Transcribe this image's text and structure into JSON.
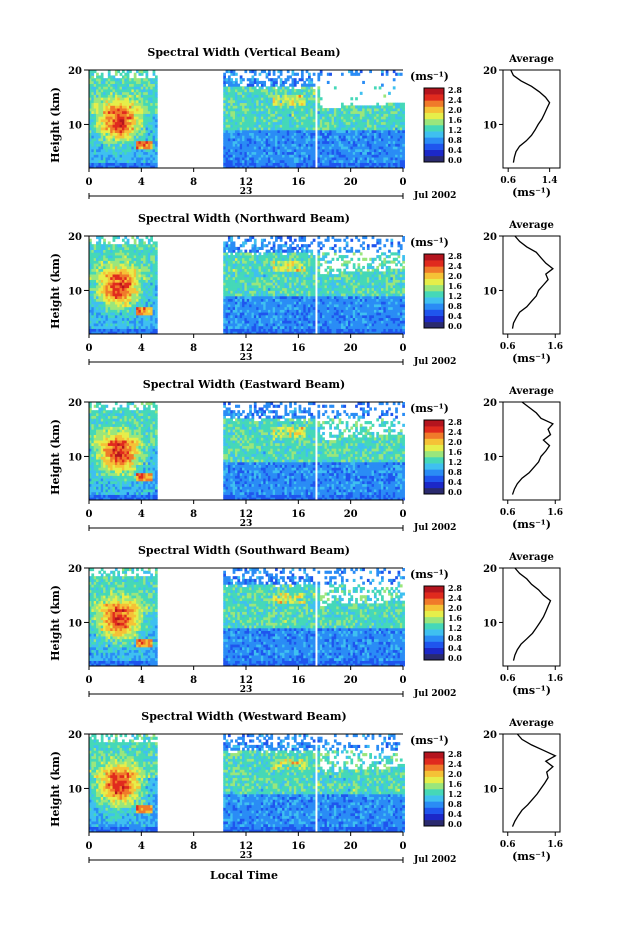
{
  "colorbar": {
    "unit_label": "(ms⁻¹)",
    "ticks": [
      "0.0",
      "0.4",
      "0.8",
      "1.2",
      "1.6",
      "2.0",
      "2.4",
      "2.8"
    ],
    "colors": [
      "#2a2a6e",
      "#1c28c8",
      "#1f55ee",
      "#2a8cf5",
      "#3fc0f0",
      "#45d8b8",
      "#9ae67c",
      "#e6ee4a",
      "#f5c236",
      "#f07a2a",
      "#e02a1e",
      "#b4141e"
    ]
  },
  "xaxis": {
    "ticks": [
      "0",
      "4",
      "8",
      "12",
      "16",
      "20",
      "0"
    ],
    "day_label": "23",
    "month_label": "Jul 2002",
    "label": "Local Time"
  },
  "yaxis": {
    "label": "Height (km)",
    "ticks": [
      "20",
      "10"
    ]
  },
  "chart_data": [
    {
      "type": "heatmap",
      "title": "Spectral Width (Vertical Beam)",
      "xlabel": "Local Time",
      "ylabel": "Height (km)",
      "xlim": [
        0,
        24
      ],
      "ylim": [
        2,
        20
      ],
      "data_gaps_hours": [
        [
          5.2,
          10.3
        ],
        [
          17.2,
          17.5
        ]
      ],
      "profile": {
        "title": "Average",
        "xlabel": "(ms⁻¹)",
        "xticks": [
          "0.6",
          "1.4"
        ],
        "xlim": [
          0.5,
          1.6
        ],
        "yticks": [
          "20",
          "10"
        ],
        "height_km": [
          3,
          4,
          5,
          6,
          7,
          8,
          9,
          10,
          11,
          12,
          13,
          14,
          15,
          16,
          17,
          18,
          19,
          20
        ],
        "width_ms": [
          0.7,
          0.72,
          0.75,
          0.82,
          0.95,
          1.05,
          1.12,
          1.18,
          1.25,
          1.3,
          1.35,
          1.4,
          1.32,
          1.2,
          1.05,
          0.85,
          0.7,
          0.65
        ]
      }
    },
    {
      "type": "heatmap",
      "title": "Spectral Width (Northward Beam)",
      "xlabel": "Local Time",
      "ylabel": "Height (km)",
      "xlim": [
        0,
        24
      ],
      "ylim": [
        2,
        20
      ],
      "data_gaps_hours": [
        [
          5.2,
          10.3
        ],
        [
          17.2,
          17.5
        ]
      ],
      "profile": {
        "title": "Average",
        "xlabel": "(ms⁻¹)",
        "xticks": [
          "0.6",
          "1.6"
        ],
        "xlim": [
          0.5,
          1.7
        ],
        "yticks": [
          "20",
          "10"
        ],
        "height_km": [
          3,
          4,
          5,
          6,
          7,
          8,
          9,
          10,
          11,
          12,
          13,
          14,
          15,
          16,
          17,
          18,
          19,
          20
        ],
        "width_ms": [
          0.7,
          0.72,
          0.78,
          0.85,
          1.0,
          1.1,
          1.2,
          1.25,
          1.35,
          1.45,
          1.4,
          1.55,
          1.4,
          1.3,
          1.2,
          1.0,
          0.85,
          0.75
        ]
      }
    },
    {
      "type": "heatmap",
      "title": "Spectral Width (Eastward Beam)",
      "xlabel": "Local Time",
      "ylabel": "Height (km)",
      "xlim": [
        0,
        24
      ],
      "ylim": [
        2,
        20
      ],
      "data_gaps_hours": [
        [
          5.2,
          10.3
        ],
        [
          17.2,
          17.5
        ]
      ],
      "profile": {
        "title": "Average",
        "xlabel": "(ms⁻¹)",
        "xticks": [
          "0.6",
          "1.6"
        ],
        "xlim": [
          0.5,
          1.7
        ],
        "yticks": [
          "20",
          "10"
        ],
        "height_km": [
          3,
          4,
          5,
          6,
          7,
          8,
          9,
          10,
          11,
          12,
          13,
          14,
          15,
          16,
          17,
          18,
          19,
          20
        ],
        "width_ms": [
          0.7,
          0.74,
          0.8,
          0.9,
          1.05,
          1.15,
          1.25,
          1.3,
          1.4,
          1.48,
          1.35,
          1.5,
          1.45,
          1.55,
          1.3,
          1.2,
          1.05,
          0.9
        ]
      }
    },
    {
      "type": "heatmap",
      "title": "Spectral Width (Southward Beam)",
      "xlabel": "Local Time",
      "ylabel": "Height (km)",
      "xlim": [
        0,
        24
      ],
      "ylim": [
        2,
        20
      ],
      "data_gaps_hours": [
        [
          5.2,
          10.3
        ],
        [
          17.2,
          17.5
        ]
      ],
      "profile": {
        "title": "Average",
        "xlabel": "(ms⁻¹)",
        "xticks": [
          "0.6",
          "1.6"
        ],
        "xlim": [
          0.5,
          1.7
        ],
        "yticks": [
          "20",
          "10"
        ],
        "height_km": [
          3,
          4,
          5,
          6,
          7,
          8,
          9,
          10,
          11,
          12,
          13,
          14,
          15,
          16,
          17,
          18,
          19,
          20
        ],
        "width_ms": [
          0.72,
          0.75,
          0.8,
          0.88,
          1.0,
          1.12,
          1.2,
          1.28,
          1.35,
          1.4,
          1.45,
          1.5,
          1.35,
          1.25,
          1.1,
          1.0,
          0.85,
          0.75
        ]
      }
    },
    {
      "type": "heatmap",
      "title": "Spectral Width (Westward Beam)",
      "xlabel": "Local Time",
      "ylabel": "Height (km)",
      "xlim": [
        0,
        24
      ],
      "ylim": [
        2,
        20
      ],
      "data_gaps_hours": [
        [
          5.2,
          10.3
        ],
        [
          17.2,
          17.5
        ]
      ],
      "profile": {
        "title": "Average",
        "xlabel": "(ms⁻¹)",
        "xticks": [
          "0.6",
          "1.6"
        ],
        "xlim": [
          0.5,
          1.7
        ],
        "yticks": [
          "20",
          "10"
        ],
        "height_km": [
          3,
          4,
          5,
          6,
          7,
          8,
          9,
          10,
          11,
          12,
          13,
          14,
          15,
          16,
          17,
          18,
          19,
          20
        ],
        "width_ms": [
          0.7,
          0.75,
          0.82,
          0.9,
          1.02,
          1.12,
          1.22,
          1.3,
          1.38,
          1.45,
          1.42,
          1.55,
          1.4,
          1.6,
          1.35,
          1.1,
          0.9,
          0.8
        ]
      }
    }
  ]
}
